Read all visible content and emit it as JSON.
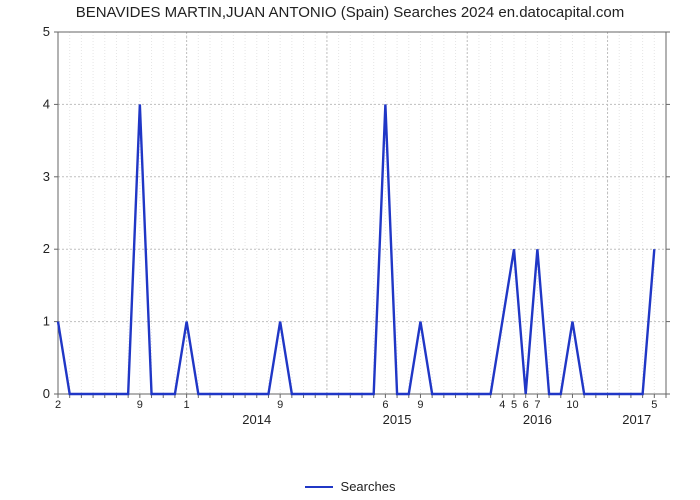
{
  "chart": {
    "type": "line",
    "title": "BENAVIDES MARTIN,JUAN ANTONIO (Spain) Searches 2024 en.datocapital.com",
    "title_fontsize": 15,
    "background_color": "#ffffff",
    "line_color": "#2037c6",
    "line_width": 2.4,
    "axis_color": "#666666",
    "grid_major_color": "#bfbfbf",
    "grid_minor_color": "#e5e5e5",
    "y": {
      "min": 0,
      "max": 5,
      "ticks": [
        0,
        1,
        2,
        3,
        4,
        5
      ],
      "label_fontsize": 13
    },
    "x": {
      "start": {
        "year": 2013,
        "month": 2
      },
      "end": {
        "year": 2017,
        "month": 6
      },
      "year_ticks": [
        2014,
        2015,
        2016,
        2017
      ],
      "month_ticks": [
        {
          "year": 2013,
          "month": 2,
          "label": "2"
        },
        {
          "year": 2013,
          "month": 9,
          "label": "9"
        },
        {
          "year": 2014,
          "month": 1,
          "label": "1"
        },
        {
          "year": 2014,
          "month": 9,
          "label": "9"
        },
        {
          "year": 2015,
          "month": 6,
          "label": "6"
        },
        {
          "year": 2015,
          "month": 9,
          "label": "9"
        },
        {
          "year": 2016,
          "month": 4,
          "label": "4"
        },
        {
          "year": 2016,
          "month": 5,
          "label": "5"
        },
        {
          "year": 2016,
          "month": 6,
          "label": "6"
        },
        {
          "year": 2016,
          "month": 7,
          "label": "7"
        },
        {
          "year": 2016,
          "month": 10,
          "label": "10"
        },
        {
          "year": 2017,
          "month": 5,
          "label": "5"
        }
      ],
      "year_label_fontsize": 13,
      "month_label_fontsize": 11
    },
    "values": [
      1,
      0,
      0,
      0,
      0,
      0,
      0,
      4,
      0,
      0,
      0,
      1,
      0,
      0,
      0,
      0,
      0,
      0,
      0,
      1,
      0,
      0,
      0,
      0,
      0,
      0,
      0,
      0,
      4,
      0,
      0,
      1,
      0,
      0,
      0,
      0,
      0,
      0,
      1,
      2,
      0,
      2,
      0,
      0,
      1,
      0,
      0,
      0,
      0,
      0,
      0,
      2
    ],
    "legend": {
      "label": "Searches",
      "color": "#2037c6",
      "fontsize": 13
    }
  }
}
